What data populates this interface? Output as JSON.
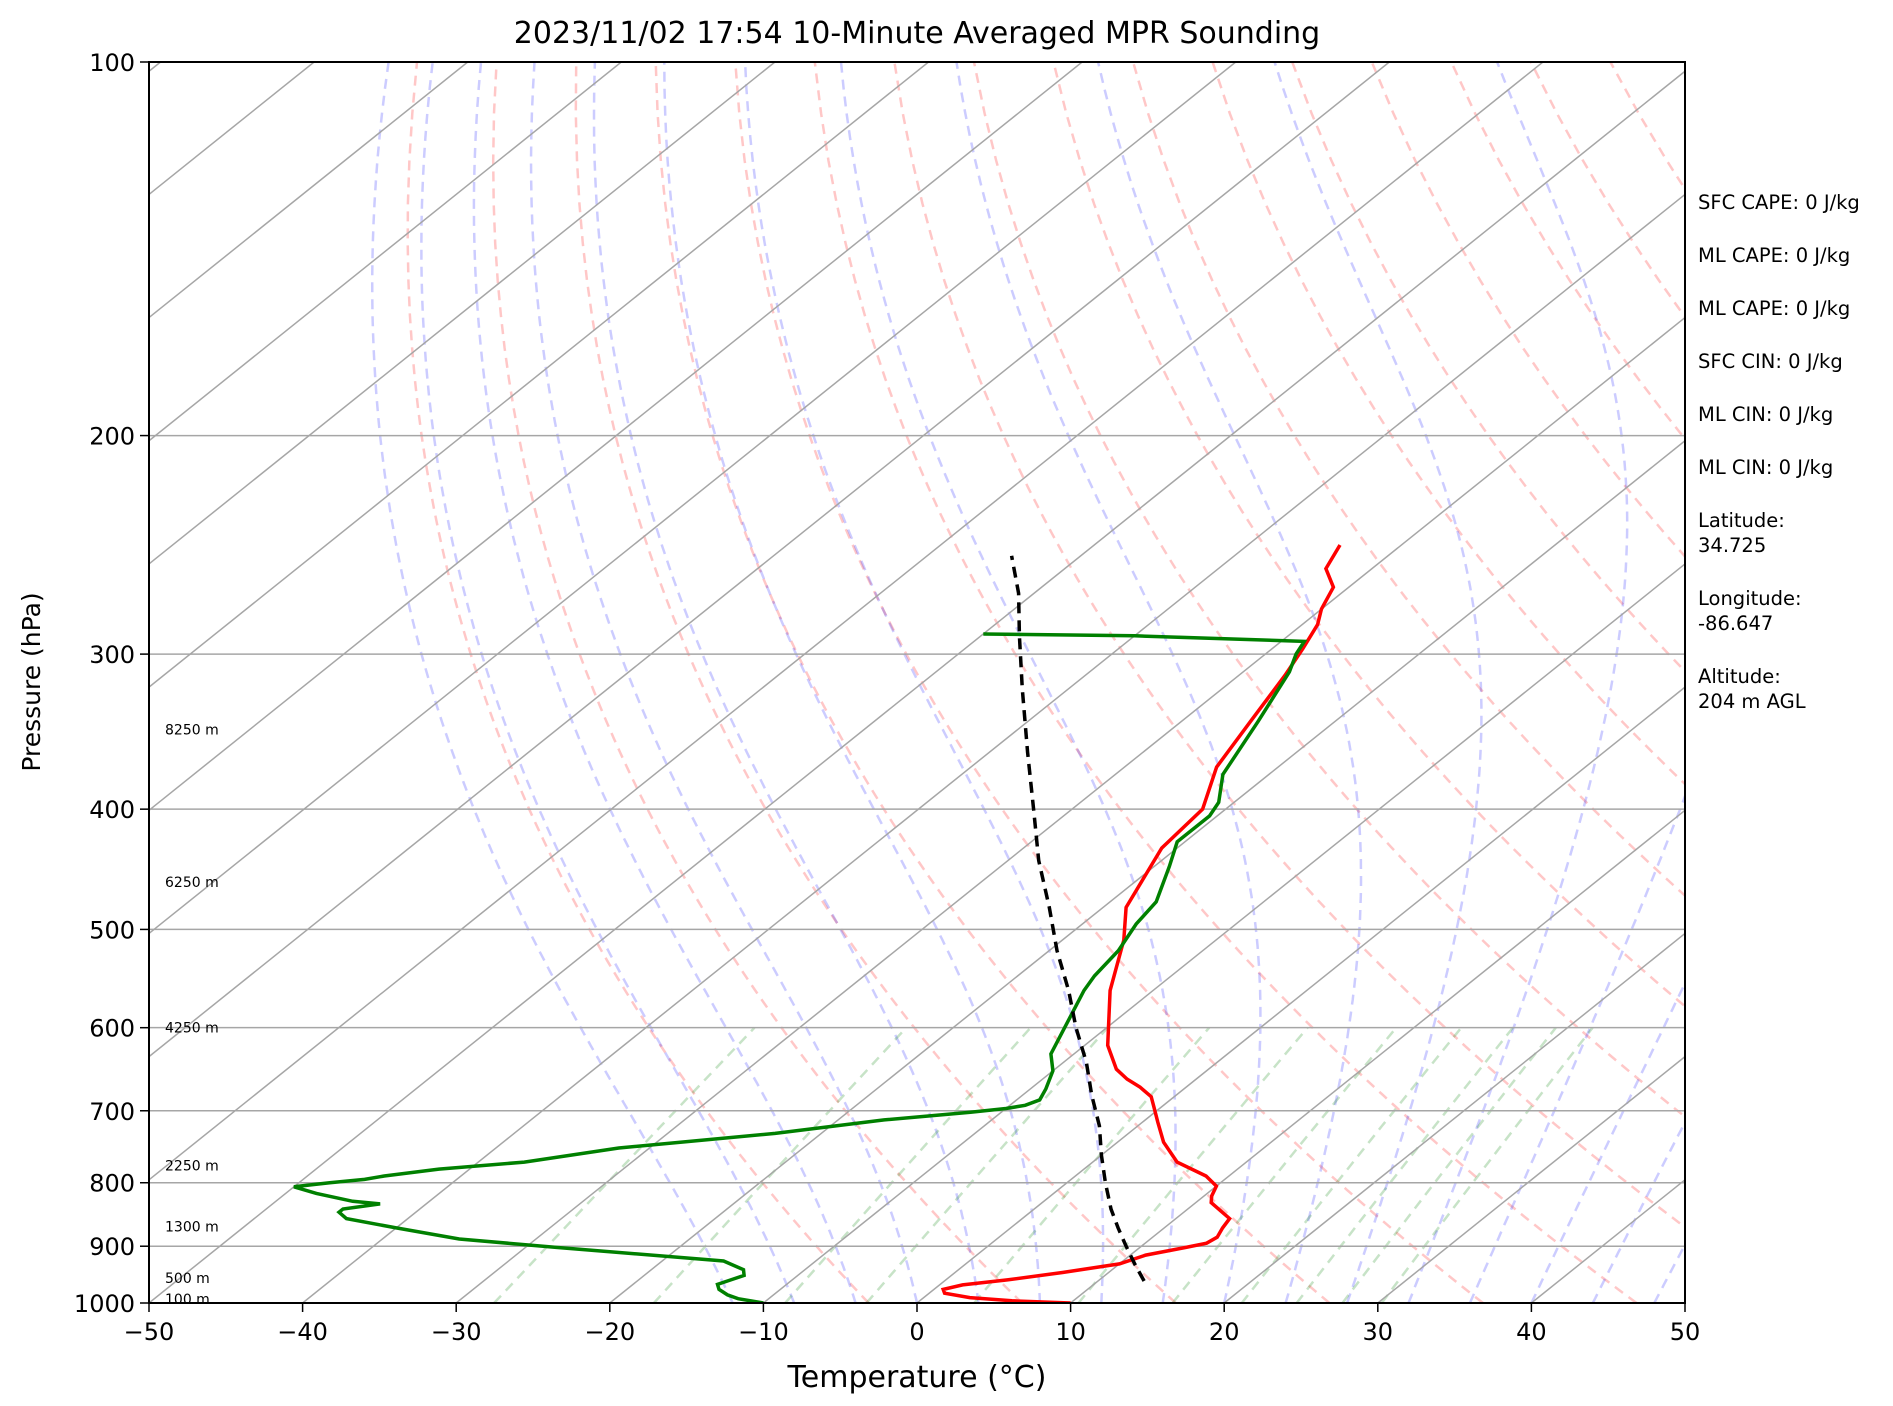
{
  "chart_data": {
    "type": "skew-t log-p sounding",
    "title": "2023/11/02 17:54 10-Minute Averaged MPR Sounding",
    "xlabel": "Temperature (°C)",
    "ylabel": "Pressure (hPa)",
    "xlim": [
      -50,
      50
    ],
    "ylim": [
      1000,
      100
    ],
    "y_scale": "log",
    "x_ticks": [
      -50,
      -40,
      -30,
      -20,
      -10,
      0,
      10,
      20,
      30,
      40,
      50
    ],
    "x_tick_labels": [
      "−50",
      "−40",
      "−30",
      "−20",
      "−10",
      "0",
      "10",
      "20",
      "30",
      "40",
      "50"
    ],
    "y_ticks": [
      1000,
      900,
      800,
      700,
      600,
      500,
      400,
      300,
      200,
      100
    ],
    "y_tick_labels": [
      "1000",
      "900",
      "800",
      "700",
      "600",
      "500",
      "400",
      "300",
      "200",
      "100"
    ],
    "grid": true,
    "height_labels": [
      {
        "text": "8250 m",
        "p": 345
      },
      {
        "text": "6250 m",
        "p": 458
      },
      {
        "text": "4250 m",
        "p": 600
      },
      {
        "text": "2250 m",
        "p": 775
      },
      {
        "text": "1300 m",
        "p": 868
      },
      {
        "text": "500 m",
        "p": 955
      },
      {
        "text": "100 m",
        "p": 993
      }
    ],
    "series": [
      {
        "role": "temperature",
        "color": "#ff0000",
        "points": [
          [
            1000,
            10
          ],
          [
            996,
            6
          ],
          [
            990,
            3
          ],
          [
            982,
            1
          ],
          [
            975,
            0.6
          ],
          [
            967,
            1.5
          ],
          [
            958,
            4
          ],
          [
            945,
            7
          ],
          [
            930,
            10
          ],
          [
            915,
            11
          ],
          [
            902,
            13
          ],
          [
            895,
            14
          ],
          [
            885,
            14.2
          ],
          [
            870,
            13.8
          ],
          [
            855,
            13.5
          ],
          [
            845,
            12.5
          ],
          [
            830,
            11
          ],
          [
            820,
            10.5
          ],
          [
            805,
            10
          ],
          [
            790,
            8.5
          ],
          [
            770,
            5.5
          ],
          [
            742,
            3
          ],
          [
            715,
            1
          ],
          [
            695,
            -0.5
          ],
          [
            682,
            -1.5
          ],
          [
            670,
            -3
          ],
          [
            660,
            -4.5
          ],
          [
            648,
            -6
          ],
          [
            620,
            -8.5
          ],
          [
            560,
            -12.8
          ],
          [
            510,
            -16
          ],
          [
            480,
            -18.5
          ],
          [
            430,
            -21
          ],
          [
            400,
            -21.5
          ],
          [
            370,
            -24
          ],
          [
            340,
            -25.5
          ],
          [
            312,
            -27
          ],
          [
            297,
            -28
          ],
          [
            284,
            -29
          ],
          [
            276,
            -30
          ],
          [
            265,
            -31
          ],
          [
            256,
            -33
          ],
          [
            245,
            -34
          ]
        ]
      },
      {
        "role": "dewpoint",
        "color": "#008000",
        "points": [
          [
            1000,
            -10
          ],
          [
            992,
            -12
          ],
          [
            985,
            -13
          ],
          [
            975,
            -14
          ],
          [
            966,
            -14.5
          ],
          [
            958,
            -14
          ],
          [
            950,
            -13.5
          ],
          [
            940,
            -14
          ],
          [
            925,
            -16
          ],
          [
            902,
            -28
          ],
          [
            888,
            -35
          ],
          [
            870,
            -40
          ],
          [
            855,
            -44
          ],
          [
            845,
            -45
          ],
          [
            840,
            -45
          ],
          [
            832,
            -43
          ],
          [
            828,
            -45
          ],
          [
            816,
            -48
          ],
          [
            806,
            -50
          ],
          [
            800,
            -48
          ],
          [
            795,
            -46
          ],
          [
            790,
            -45
          ],
          [
            780,
            -42
          ],
          [
            770,
            -37
          ],
          [
            750,
            -32
          ],
          [
            730,
            -23
          ],
          [
            712,
            -17
          ],
          [
            702,
            -12
          ],
          [
            697,
            -10
          ],
          [
            693,
            -9
          ],
          [
            686,
            -8.5
          ],
          [
            672,
            -9
          ],
          [
            650,
            -10
          ],
          [
            630,
            -11.5
          ],
          [
            560,
            -14.5
          ],
          [
            545,
            -15
          ],
          [
            520,
            -15.5
          ],
          [
            495,
            -16.5
          ],
          [
            475,
            -17
          ],
          [
            445,
            -19
          ],
          [
            425,
            -20.5
          ],
          [
            405,
            -20.5
          ],
          [
            395,
            -21
          ],
          [
            375,
            -23
          ],
          [
            340,
            -25
          ],
          [
            310,
            -27
          ],
          [
            300,
            -28
          ],
          [
            293,
            -28.5
          ],
          [
            290,
            -40
          ],
          [
            289,
            -50
          ]
        ]
      },
      {
        "role": "parcel profile",
        "color": "#000000",
        "points": [
          [
            960,
            13
          ],
          [
            930,
            11
          ],
          [
            900,
            9
          ],
          [
            870,
            7
          ],
          [
            840,
            5
          ],
          [
            800,
            2.5
          ],
          [
            760,
            0
          ],
          [
            720,
            -2.5
          ],
          [
            680,
            -5.5
          ],
          [
            640,
            -8.5
          ],
          [
            600,
            -12
          ],
          [
            560,
            -15.5
          ],
          [
            520,
            -19.5
          ],
          [
            480,
            -23.5
          ],
          [
            440,
            -28
          ],
          [
            400,
            -32.5
          ],
          [
            360,
            -37.5
          ],
          [
            320,
            -43
          ],
          [
            290,
            -47.5
          ],
          [
            268,
            -51
          ],
          [
            250,
            -54.5
          ]
        ]
      }
    ],
    "parameters": [
      {
        "label": "SFC CAPE: 0 J/kg"
      },
      {
        "label": "ML CAPE: 0 J/kg"
      },
      {
        "label": "ML CAPE: 0 J/kg"
      },
      {
        "label": "SFC CIN: 0 J/kg"
      },
      {
        "label": "ML CIN: 0 J/kg"
      },
      {
        "label": "ML CIN: 0 J/kg"
      },
      {
        "label": "Latitude:",
        "value": "34.725"
      },
      {
        "label": "Longitude:",
        "value": "-86.647"
      },
      {
        "label": "Altitude:",
        "value": "204 m AGL"
      }
    ]
  }
}
